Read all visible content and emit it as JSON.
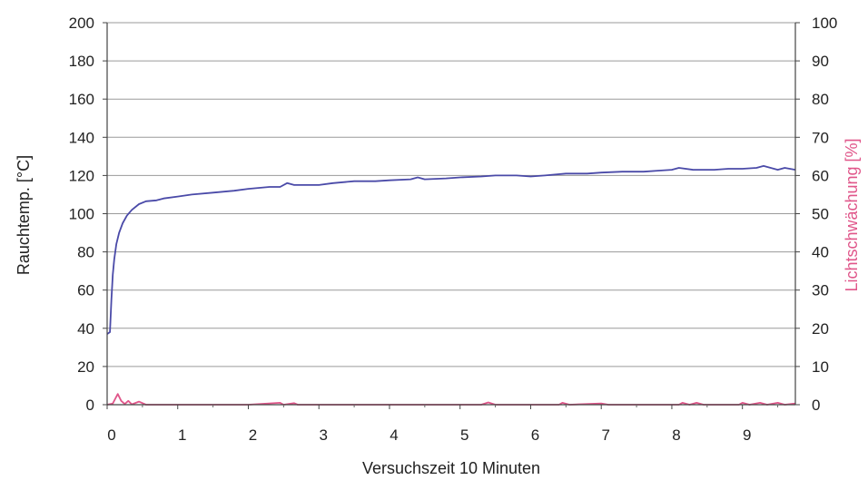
{
  "chart_data": {
    "type": "line",
    "title": "",
    "xlabel": "Versuchszeit 10 Minuten",
    "ylabel_left": "Rauchtemp. [°C]",
    "ylabel_right": "Lichtschwächung [%]",
    "xlim": [
      0,
      9.75
    ],
    "ylim_left": [
      0,
      200
    ],
    "ylim_right": [
      0,
      100
    ],
    "x_ticks": [
      0,
      1,
      2,
      3,
      4,
      5,
      6,
      7,
      8,
      9
    ],
    "y_ticks_left": [
      0,
      20,
      40,
      60,
      80,
      100,
      120,
      140,
      160,
      180,
      200
    ],
    "y_ticks_right": [
      0,
      10,
      20,
      30,
      40,
      50,
      60,
      70,
      80,
      90,
      100
    ],
    "grid": true,
    "series": [
      {
        "axis": "left",
        "color": "#4a4aa8",
        "points": [
          [
            0,
            37
          ],
          [
            0.04,
            38
          ],
          [
            0.06,
            55
          ],
          [
            0.08,
            68
          ],
          [
            0.1,
            76
          ],
          [
            0.13,
            84
          ],
          [
            0.17,
            90
          ],
          [
            0.22,
            95
          ],
          [
            0.28,
            99
          ],
          [
            0.35,
            102
          ],
          [
            0.45,
            105
          ],
          [
            0.55,
            106.5
          ],
          [
            0.7,
            107
          ],
          [
            0.8,
            108
          ],
          [
            1.0,
            109
          ],
          [
            1.2,
            110
          ],
          [
            1.5,
            111
          ],
          [
            1.8,
            112
          ],
          [
            2.0,
            113
          ],
          [
            2.3,
            114
          ],
          [
            2.45,
            114
          ],
          [
            2.55,
            116
          ],
          [
            2.65,
            115
          ],
          [
            2.8,
            115
          ],
          [
            3.0,
            115
          ],
          [
            3.2,
            116
          ],
          [
            3.5,
            117
          ],
          [
            3.8,
            117
          ],
          [
            4.0,
            117.5
          ],
          [
            4.3,
            118
          ],
          [
            4.4,
            119
          ],
          [
            4.5,
            118
          ],
          [
            4.8,
            118.5
          ],
          [
            5.0,
            119
          ],
          [
            5.3,
            119.5
          ],
          [
            5.5,
            120
          ],
          [
            5.8,
            120
          ],
          [
            6.0,
            119.5
          ],
          [
            6.2,
            120
          ],
          [
            6.5,
            121
          ],
          [
            6.8,
            121
          ],
          [
            7.0,
            121.5
          ],
          [
            7.3,
            122
          ],
          [
            7.6,
            122
          ],
          [
            7.8,
            122.5
          ],
          [
            8.0,
            123
          ],
          [
            8.1,
            124
          ],
          [
            8.3,
            123
          ],
          [
            8.6,
            123
          ],
          [
            8.8,
            123.5
          ],
          [
            9.0,
            123.5
          ],
          [
            9.2,
            124
          ],
          [
            9.3,
            125
          ],
          [
            9.4,
            124
          ],
          [
            9.5,
            123
          ],
          [
            9.6,
            124
          ],
          [
            9.75,
            123
          ]
        ]
      },
      {
        "axis": "right",
        "color": "#e0568a",
        "points": [
          [
            0,
            0
          ],
          [
            0.08,
            0.3
          ],
          [
            0.15,
            2.8
          ],
          [
            0.2,
            1.0
          ],
          [
            0.25,
            0.2
          ],
          [
            0.3,
            1.0
          ],
          [
            0.35,
            0.1
          ],
          [
            0.45,
            0.8
          ],
          [
            0.55,
            0
          ],
          [
            1.0,
            0
          ],
          [
            2.0,
            0
          ],
          [
            2.45,
            0.5
          ],
          [
            2.5,
            0
          ],
          [
            2.65,
            0.4
          ],
          [
            2.7,
            0
          ],
          [
            4.0,
            0
          ],
          [
            5.3,
            0
          ],
          [
            5.4,
            0.6
          ],
          [
            5.5,
            0
          ],
          [
            6.4,
            0
          ],
          [
            6.45,
            0.5
          ],
          [
            6.55,
            0
          ],
          [
            7.0,
            0.3
          ],
          [
            7.1,
            0
          ],
          [
            8.1,
            0
          ],
          [
            8.15,
            0.5
          ],
          [
            8.25,
            0
          ],
          [
            8.35,
            0.5
          ],
          [
            8.45,
            0
          ],
          [
            8.95,
            0
          ],
          [
            9.0,
            0.5
          ],
          [
            9.1,
            0
          ],
          [
            9.25,
            0.5
          ],
          [
            9.35,
            0
          ],
          [
            9.5,
            0.5
          ],
          [
            9.6,
            0
          ],
          [
            9.75,
            0.3
          ]
        ]
      }
    ]
  }
}
